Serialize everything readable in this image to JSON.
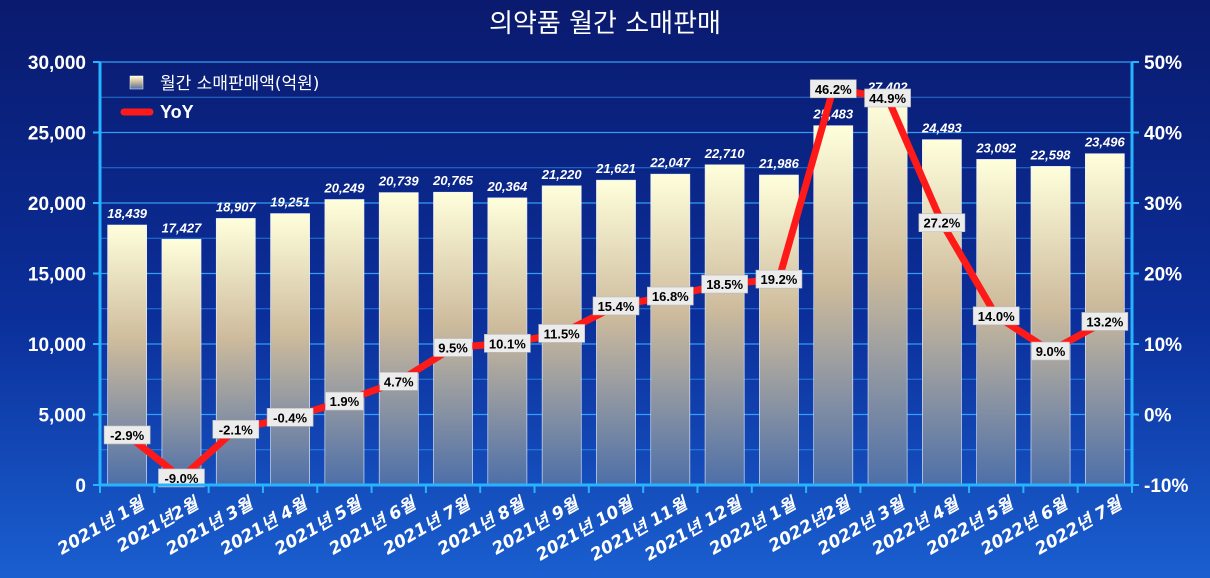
{
  "chart_data": {
    "type": "bar",
    "title": "의약품 월간 소매판매",
    "categories": [
      "2021년 1월",
      "2021년2월",
      "2021년 3월",
      "2021년 4월",
      "2021년 5월",
      "2021년 6월",
      "2021년 7월",
      "2021년 8월",
      "2021년 9월",
      "2021년 10월",
      "2021년 11월",
      "2021년 12월",
      "2022년 1월",
      "2022년2월",
      "2022년 3월",
      "2022년 4월",
      "2022년 5월",
      "2022년 6월",
      "2022년 7월"
    ],
    "series": [
      {
        "name": "월간 소매판매액(억원)",
        "type": "bar",
        "axis": "left",
        "values": [
          18439,
          17427,
          18907,
          19251,
          20249,
          20739,
          20765,
          20364,
          21220,
          21621,
          22047,
          22710,
          21986,
          25483,
          27402,
          24493,
          23092,
          22598,
          23496
        ],
        "labels": [
          "18,439",
          "17,427",
          "18,907",
          "19,251",
          "20,249",
          "20,739",
          "20,765",
          "20,364",
          "21,220",
          "21,621",
          "22,047",
          "22,710",
          "21,986",
          "25,483",
          "27,402",
          "24,493",
          "23,092",
          "22,598",
          "23,496"
        ]
      },
      {
        "name": "YoY",
        "type": "line",
        "axis": "right",
        "color": "#ff1a1a",
        "values": [
          -2.9,
          -9.0,
          -2.1,
          -0.4,
          1.9,
          4.7,
          9.5,
          10.1,
          11.5,
          15.4,
          16.8,
          18.5,
          19.2,
          46.2,
          44.9,
          27.2,
          14.0,
          9.0,
          13.2
        ],
        "labels": [
          "-2.9%",
          "-9.0%",
          "-2.1%",
          "-0.4%",
          "1.9%",
          "4.7%",
          "9.5%",
          "10.1%",
          "11.5%",
          "15.4%",
          "16.8%",
          "18.5%",
          "19.2%",
          "46.2%",
          "44.9%",
          "27.2%",
          "14.0%",
          "9.0%",
          "13.2%"
        ]
      }
    ],
    "y_left": {
      "min": 0,
      "max": 30000,
      "ticks": [
        "0",
        "5,000",
        "10,000",
        "15,000",
        "20,000",
        "25,000",
        "30,000"
      ]
    },
    "y_right": {
      "min": -10,
      "max": 50,
      "ticks": [
        "-10%",
        "0%",
        "10%",
        "20%",
        "30%",
        "40%",
        "50%"
      ]
    },
    "grid": true,
    "legend": "top-left",
    "colors": {
      "axis": "#26b4ff",
      "grid": "#3aa8ff",
      "line": "#ff1a1a"
    }
  }
}
